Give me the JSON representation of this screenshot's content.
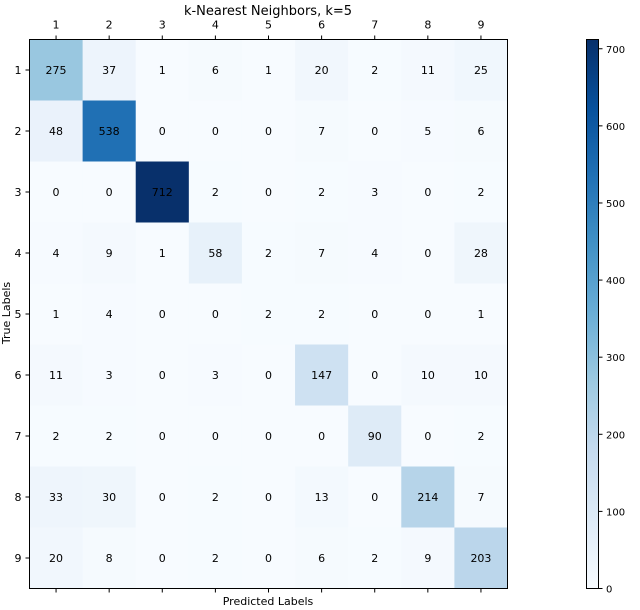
{
  "chart_data": {
    "type": "heatmap",
    "title": "k-Nearest Neighbors, k=5",
    "xlabel": "Predicted Labels",
    "ylabel": "True Labels",
    "x_categories": [
      "1",
      "2",
      "3",
      "4",
      "5",
      "6",
      "7",
      "8",
      "9"
    ],
    "y_categories": [
      "1",
      "2",
      "3",
      "4",
      "5",
      "6",
      "7",
      "8",
      "9"
    ],
    "values": [
      [
        275,
        37,
        1,
        6,
        1,
        20,
        2,
        11,
        25
      ],
      [
        48,
        538,
        0,
        0,
        0,
        7,
        0,
        5,
        6
      ],
      [
        0,
        0,
        712,
        2,
        0,
        2,
        3,
        0,
        2
      ],
      [
        4,
        9,
        1,
        58,
        2,
        7,
        4,
        0,
        28
      ],
      [
        1,
        4,
        0,
        0,
        2,
        2,
        0,
        0,
        1
      ],
      [
        11,
        3,
        0,
        3,
        0,
        147,
        0,
        10,
        10
      ],
      [
        2,
        2,
        0,
        0,
        0,
        0,
        90,
        0,
        2
      ],
      [
        33,
        30,
        0,
        2,
        0,
        13,
        0,
        214,
        7
      ],
      [
        20,
        8,
        0,
        2,
        0,
        6,
        2,
        9,
        203
      ]
    ],
    "colormap": "Blues",
    "color_range": [
      0,
      712
    ],
    "colorbar_ticks": [
      0,
      100,
      200,
      300,
      400,
      500,
      600,
      700
    ],
    "x_axis_position": "top"
  }
}
